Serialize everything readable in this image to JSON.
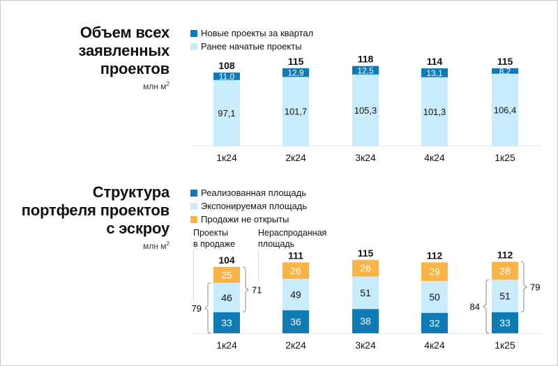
{
  "colors": {
    "new_projects": "#0e7bb5",
    "earlier_projects": "#c8ecfb",
    "sold": "#0e7bb5",
    "exposed": "#c8ecfb",
    "not_opened": "#f8b446",
    "axis": "#e3e3e3",
    "guide": "#dcdcdc"
  },
  "top": {
    "title_lines": [
      "Объем всех",
      "заявленных",
      "проектов"
    ],
    "unit": "млн м",
    "unit_sup": "2",
    "legend": [
      "Новые проекты за квартал",
      "Ранее начатые проекты"
    ]
  },
  "bottom": {
    "title_lines": [
      "Структура",
      "портфеля проектов",
      "с эскроу"
    ],
    "unit": "млн м",
    "unit_sup": "2",
    "legend": [
      "Реализованная площадь",
      "Экспонируемая площадь",
      "Продажи не открыты"
    ],
    "annotation_left": [
      "Проекты",
      "в продаже"
    ],
    "annotation_right": [
      "Нераспроданная",
      "площадь"
    ],
    "brace_first_left": "79",
    "brace_first_right": "71",
    "brace_last_left": "84",
    "brace_last_right": "79"
  },
  "chart_data": [
    {
      "type": "bar",
      "stacked": true,
      "title": "Объем всех заявленных проектов",
      "ylabel": "млн м2",
      "categories": [
        "1к24",
        "2к24",
        "3к24",
        "4к24",
        "1к25"
      ],
      "totals": [
        "108",
        "115",
        "118",
        "114",
        "115"
      ],
      "series": [
        {
          "name": "Ранее начатые проекты",
          "values": [
            97.1,
            101.7,
            105.3,
            101.3,
            106.4
          ],
          "labels": [
            "97,1",
            "101,7",
            "105,3",
            "101,3",
            "106,4"
          ]
        },
        {
          "name": "Новые проекты за квартал",
          "values": [
            11.0,
            12.9,
            12.5,
            13.1,
            8.2
          ],
          "labels": [
            "11,0",
            "12,9",
            "12,5",
            "13,1",
            "8,2"
          ]
        }
      ],
      "legend_position": "top-left"
    },
    {
      "type": "bar",
      "stacked": true,
      "title": "Структура портфеля проектов с эскроу",
      "ylabel": "млн м2",
      "categories": [
        "1к24",
        "2к24",
        "3к24",
        "4к24",
        "1к25"
      ],
      "totals": [
        "104",
        "111",
        "115",
        "112",
        "112"
      ],
      "series": [
        {
          "name": "Реализованная площадь",
          "values": [
            33,
            36,
            38,
            32,
            33
          ],
          "labels": [
            "33",
            "36",
            "38",
            "32",
            "33"
          ]
        },
        {
          "name": "Экспонируемая площадь",
          "values": [
            46,
            49,
            51,
            50,
            51
          ],
          "labels": [
            "46",
            "49",
            "51",
            "50",
            "51"
          ]
        },
        {
          "name": "Продажи не открыты",
          "values": [
            25,
            26,
            26,
            29,
            28
          ],
          "labels": [
            "25",
            "26",
            "26",
            "29",
            "28"
          ]
        }
      ],
      "legend_position": "top-left"
    }
  ]
}
